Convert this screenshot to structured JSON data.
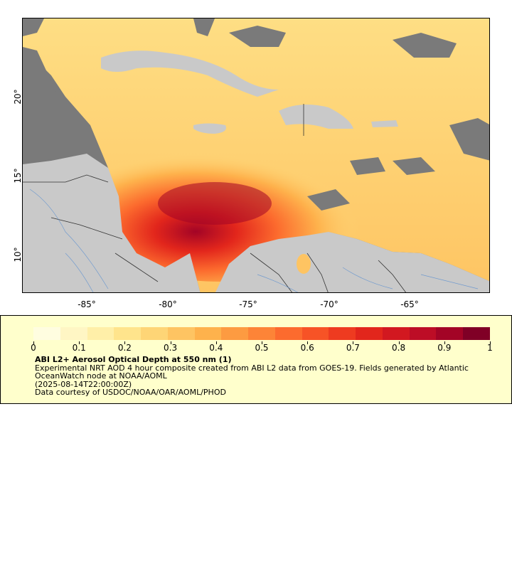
{
  "map": {
    "x_ticks": [
      "-85°",
      "-80°",
      "-75°",
      "-70°",
      "-65°"
    ],
    "y_ticks": [
      "20°",
      "15°",
      "10°"
    ],
    "colors": {
      "ocean_nodata": "#7a7a7a",
      "land": "#c9c9c9",
      "rivers": "#5b8fd0",
      "borders": "#333333"
    }
  },
  "legend": {
    "colorbar_ticks": [
      "0",
      "0.1",
      "0.2",
      "0.3",
      "0.4",
      "0.5",
      "0.6",
      "0.7",
      "0.8",
      "0.9",
      "1"
    ],
    "colorbar_colors": [
      "#fffde0",
      "#fff6c4",
      "#ffefa8",
      "#ffe48c",
      "#fed576",
      "#fec462",
      "#feb24c",
      "#fd9b41",
      "#fd8437",
      "#fc6b2e",
      "#f75326",
      "#ee3b20",
      "#e2261c",
      "#d21820",
      "#bd0d26",
      "#a30426",
      "#800026"
    ],
    "title": "ABI L2+ Aerosol Optical Depth at 550 nm (1)",
    "description": "Experimental NRT AOD 4 hour composite created from ABI L2 data from GOES-19. Fields generated by Atlantic OceanWatch node at NOAA/AOML",
    "timestamp": "(2025-08-14T22:00:00Z)",
    "credit": "Data courtesy of USDOC/NOAA/OAR/AOML/PHOD"
  }
}
